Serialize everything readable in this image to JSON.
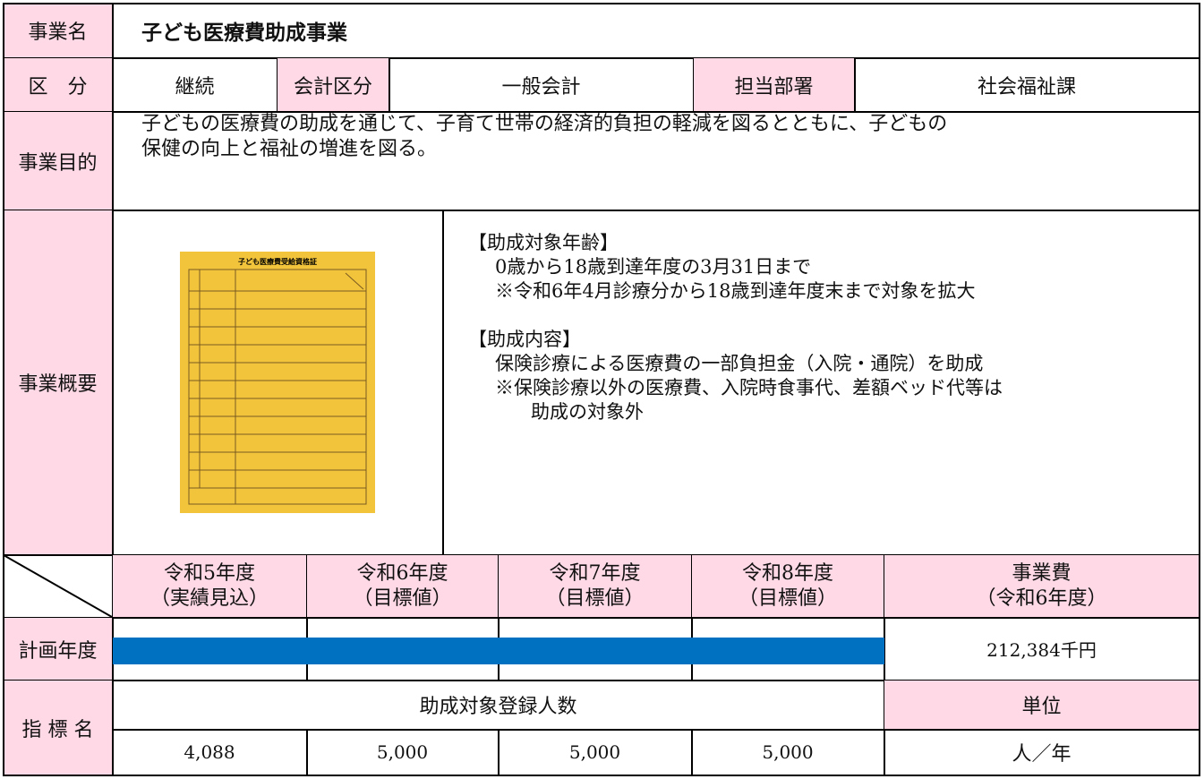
{
  "business_name": {
    "label": "事業名",
    "value": "子ども医療費助成事業"
  },
  "classification": {
    "label": "区　分",
    "value": "継続",
    "accounting_label": "会計区分",
    "accounting_value": "一般会計",
    "department_label": "担当部署",
    "department_value": "社会福祉課"
  },
  "purpose": {
    "label": "事業目的",
    "lines": [
      "子どもの医療費の助成を通じて、子育て世帯の経済的負担の軽減を図るとともに、子どもの",
      "保健の向上と福祉の増進を図る。"
    ]
  },
  "overview": {
    "label": "事業概要",
    "image_title": "子ども医療費受給資格証",
    "sections": [
      {
        "heading": "【助成対象年齢】",
        "lines": [
          "0歳から18歳到達年度の3月31日まで",
          "※令和6年4月診療分から18歳到達年度末まで対象を拡大"
        ]
      },
      {
        "heading": "【助成内容】",
        "lines": [
          "保険診療による医療費の一部負担金（入院・通院）を助成",
          "※保険診療以外の医療費、入院時食事代、差額ベッド代等は",
          "助成の対象外"
        ]
      }
    ]
  },
  "plan": {
    "headers": [
      [
        "令和5年度",
        "（実績見込）"
      ],
      [
        "令和6年度",
        "（目標値）"
      ],
      [
        "令和7年度",
        "（目標値）"
      ],
      [
        "令和8年度",
        "（目標値）"
      ]
    ],
    "cost_header": [
      "事業費",
      "（令和6年度）"
    ],
    "row_label": "計画年度",
    "cost": "212,384千円"
  },
  "indicator": {
    "label": "指 標 名",
    "name": "助成対象登録人数",
    "unit_label": "単位",
    "values": [
      "4,088",
      "5,000",
      "5,000",
      "5,000"
    ],
    "unit": "人／年"
  }
}
